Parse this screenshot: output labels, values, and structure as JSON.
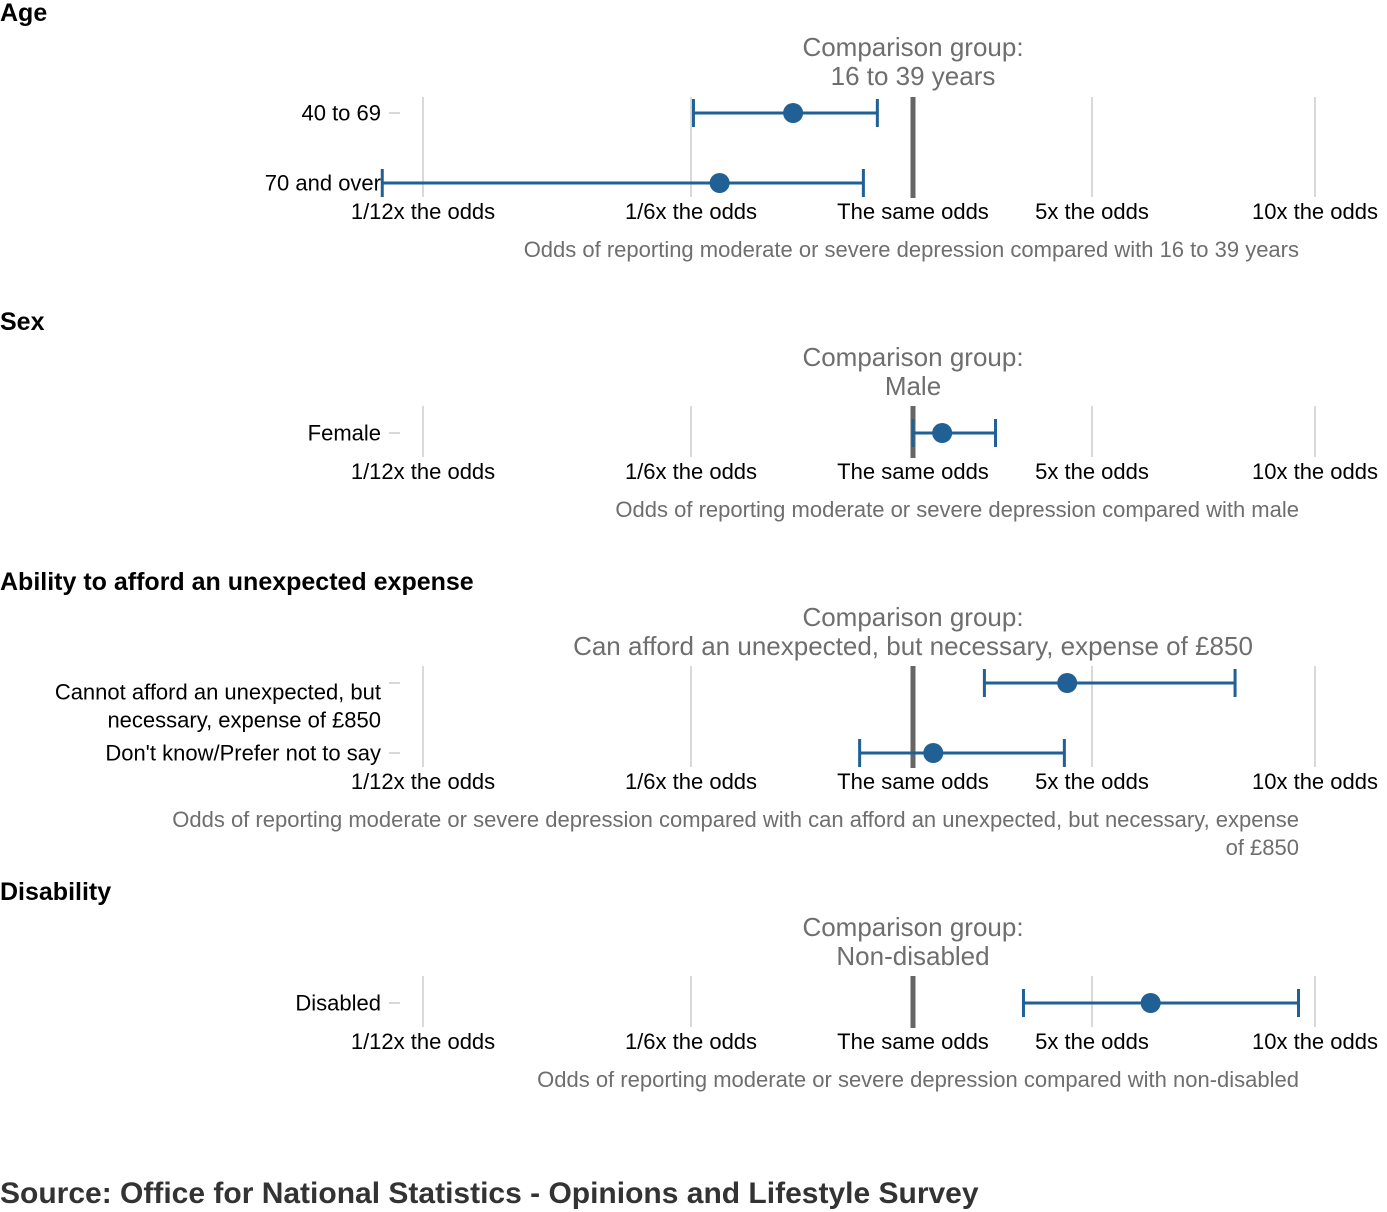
{
  "colors": {
    "series": "#206095",
    "reference": "#666666",
    "grid": "#cccccc",
    "muted_text": "#6e6e6e"
  },
  "chart_data": [
    {
      "type": "scatter",
      "variant": "forest-plot with confidence intervals",
      "title": "Age",
      "comparison_label": "Comparison group:",
      "comparison_group": "16 to 39 years",
      "xlabel": "Odds of reporting moderate or severe depression compared with 16 to 39 years",
      "x_scale": "log-odds",
      "tick_labels": [
        "1/12x the odds",
        "1/6x the odds",
        "The same odds",
        "5x the odds",
        "10x the odds"
      ],
      "categories": [
        "40 to 69",
        "70 and over"
      ],
      "estimates": [
        {
          "category": "40 to 69",
          "odds": 0.38,
          "lower": 0.17,
          "upper": 0.75
        },
        {
          "category": "70 and over",
          "odds": 0.21,
          "lower": 0.075,
          "upper": 0.67
        }
      ]
    },
    {
      "type": "scatter",
      "variant": "forest-plot with confidence intervals",
      "title": "Sex",
      "comparison_label": "Comparison group:",
      "comparison_group": "Male",
      "xlabel": "Odds of reporting moderate or severe depression compared with male",
      "x_scale": "log-odds",
      "tick_labels": [
        "1/12x the odds",
        "1/6x the odds",
        "The same odds",
        "5x the odds",
        "10x the odds"
      ],
      "categories": [
        "Female"
      ],
      "estimates": [
        {
          "category": "Female",
          "odds": 1.3,
          "lower": 1.0,
          "upper": 2.1
        }
      ]
    },
    {
      "type": "scatter",
      "variant": "forest-plot with confidence intervals",
      "title": "Ability to afford an unexpected expense",
      "comparison_label": "Comparison group:",
      "comparison_group": "Can afford an unexpected, but necessary, expense of £850",
      "xlabel": "Odds of reporting moderate or severe depression compared with can afford an unexpected, but necessary, expense of £850",
      "x_scale": "log-odds",
      "tick_labels": [
        "1/12x the odds",
        "1/6x the odds",
        "The same odds",
        "5x the odds",
        "10x the odds"
      ],
      "categories": [
        "Cannot afford an unexpected, but necessary, expense of £850",
        "Don't know/Prefer not to say"
      ],
      "estimates": [
        {
          "category": "Cannot afford an unexpected, but necessary, expense of £850",
          "odds": 4.0,
          "lower": 1.9,
          "upper": 7.8
        },
        {
          "category": "Don't know/Prefer not to say",
          "odds": 1.2,
          "lower": 0.65,
          "upper": 3.9
        }
      ]
    },
    {
      "type": "scatter",
      "variant": "forest-plot with confidence intervals",
      "title": "Disability",
      "comparison_label": "Comparison group:",
      "comparison_group": "Non-disabled",
      "xlabel": "Odds of reporting moderate or severe depression compared with non-disabled",
      "x_scale": "log-odds",
      "tick_labels": [
        "1/12x the odds",
        "1/6x the odds",
        "The same odds",
        "5x the odds",
        "10x the odds"
      ],
      "categories": [
        "Disabled"
      ],
      "estimates": [
        {
          "category": "Disabled",
          "odds": 6.0,
          "lower": 2.7,
          "upper": 9.5
        }
      ]
    }
  ],
  "source": "Source: Office for National Statistics - Opinions and Lifestyle Survey"
}
